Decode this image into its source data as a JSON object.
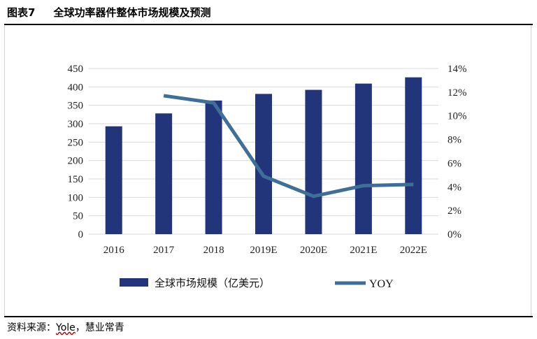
{
  "figure": {
    "number": "图表7",
    "title": "全球功率器件整体市场规模及预测",
    "source_prefix": "资料来源：",
    "source_name": "Yole",
    "source_suffix": "，慧业常青"
  },
  "chart_data": {
    "type": "bar",
    "categories": [
      "2016",
      "2017",
      "2018",
      "2019E",
      "2020E",
      "2021E",
      "2022E"
    ],
    "series": [
      {
        "name": "全球市场规模（亿美元）",
        "type": "bar",
        "axis": "left",
        "values": [
          293,
          328,
          363,
          381,
          392,
          409,
          426
        ]
      },
      {
        "name": "YOY",
        "type": "line",
        "axis": "right",
        "values": [
          null,
          11.7,
          11.1,
          4.9,
          3.2,
          4.1,
          4.2
        ]
      }
    ],
    "ylim": [
      0,
      450
    ],
    "y_ticks": [
      "0",
      "50",
      "100",
      "150",
      "200",
      "250",
      "300",
      "350",
      "400",
      "450"
    ],
    "y2lim": [
      0,
      14
    ],
    "y2_ticks": [
      "0%",
      "2%",
      "4%",
      "6%",
      "8%",
      "10%",
      "12%",
      "14%"
    ],
    "grid": true,
    "legend": "bottom",
    "colors": {
      "bar": "#23357a",
      "line": "#3d6f98",
      "grid": "#d9d9d9"
    }
  }
}
